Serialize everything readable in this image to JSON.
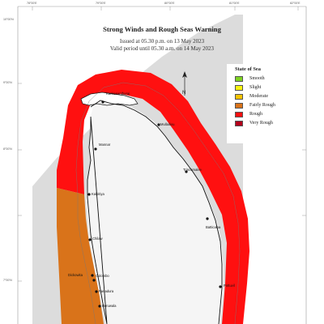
{
  "header": {
    "title": "Strong Winds and Rough Seas Warning",
    "issued": "Issued at 05.30 p.m. on 13 May 2023",
    "valid": "Valid period until 05.30 a.m. on 14 May 2023"
  },
  "legend": {
    "title": "State of Sea",
    "items": [
      {
        "label": "Smooth",
        "color": "#7ED321"
      },
      {
        "label": "Slight",
        "color": "#F8F410"
      },
      {
        "label": "Moderate",
        "color": "#F5C400"
      },
      {
        "label": "Fairly Rough",
        "color": "#D9731A"
      },
      {
        "label": "Rough",
        "color": "#FF1010"
      },
      {
        "label": "Very Rough",
        "color": "#B3001B"
      }
    ]
  },
  "zone_colors": {
    "west_coast": "#D9731A",
    "north_east_south": "#FF1010",
    "land": "#F5F5F5",
    "deep_sea": "#DCDCDC"
  },
  "graticule": {
    "top": [
      "78°00'E",
      "79°00'E",
      "80°00'E",
      "81°00'E",
      "82°00'E",
      "83°00'E"
    ],
    "left": [
      "10°00'N",
      "9°00'N",
      "8°00'N",
      "7°00'N"
    ]
  },
  "places": [
    "Kankesanthurai",
    "Mullaitivu",
    "Mannar",
    "Trincomalee",
    "Kalpitiya",
    "Batticaloa",
    "Pottuvil",
    "Chilaw",
    "Colombo",
    "Panadura",
    "Beruwala",
    "Dickowita"
  ]
}
